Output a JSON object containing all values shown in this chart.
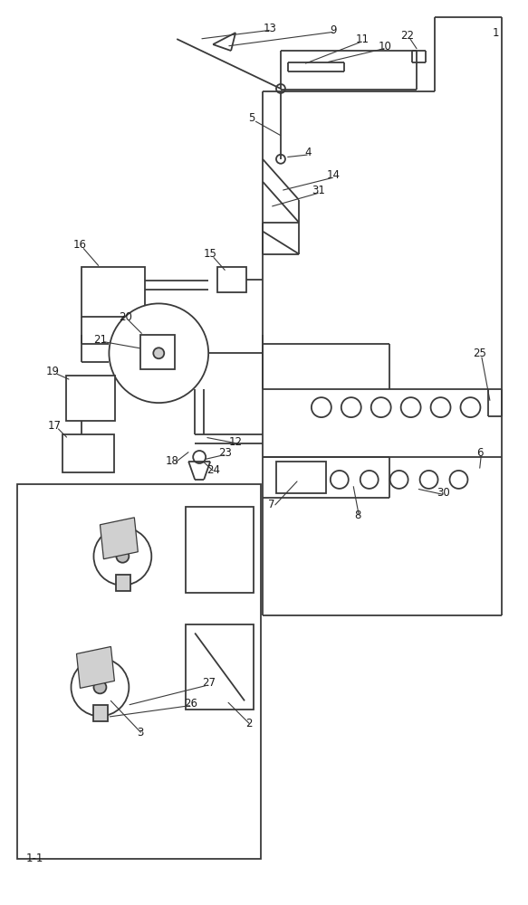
{
  "bg": "#ffffff",
  "lc": "#3a3a3a",
  "lw": 1.3,
  "lw2": 0.9,
  "fig_w": 5.83,
  "fig_h": 10.0,
  "dpi": 100
}
